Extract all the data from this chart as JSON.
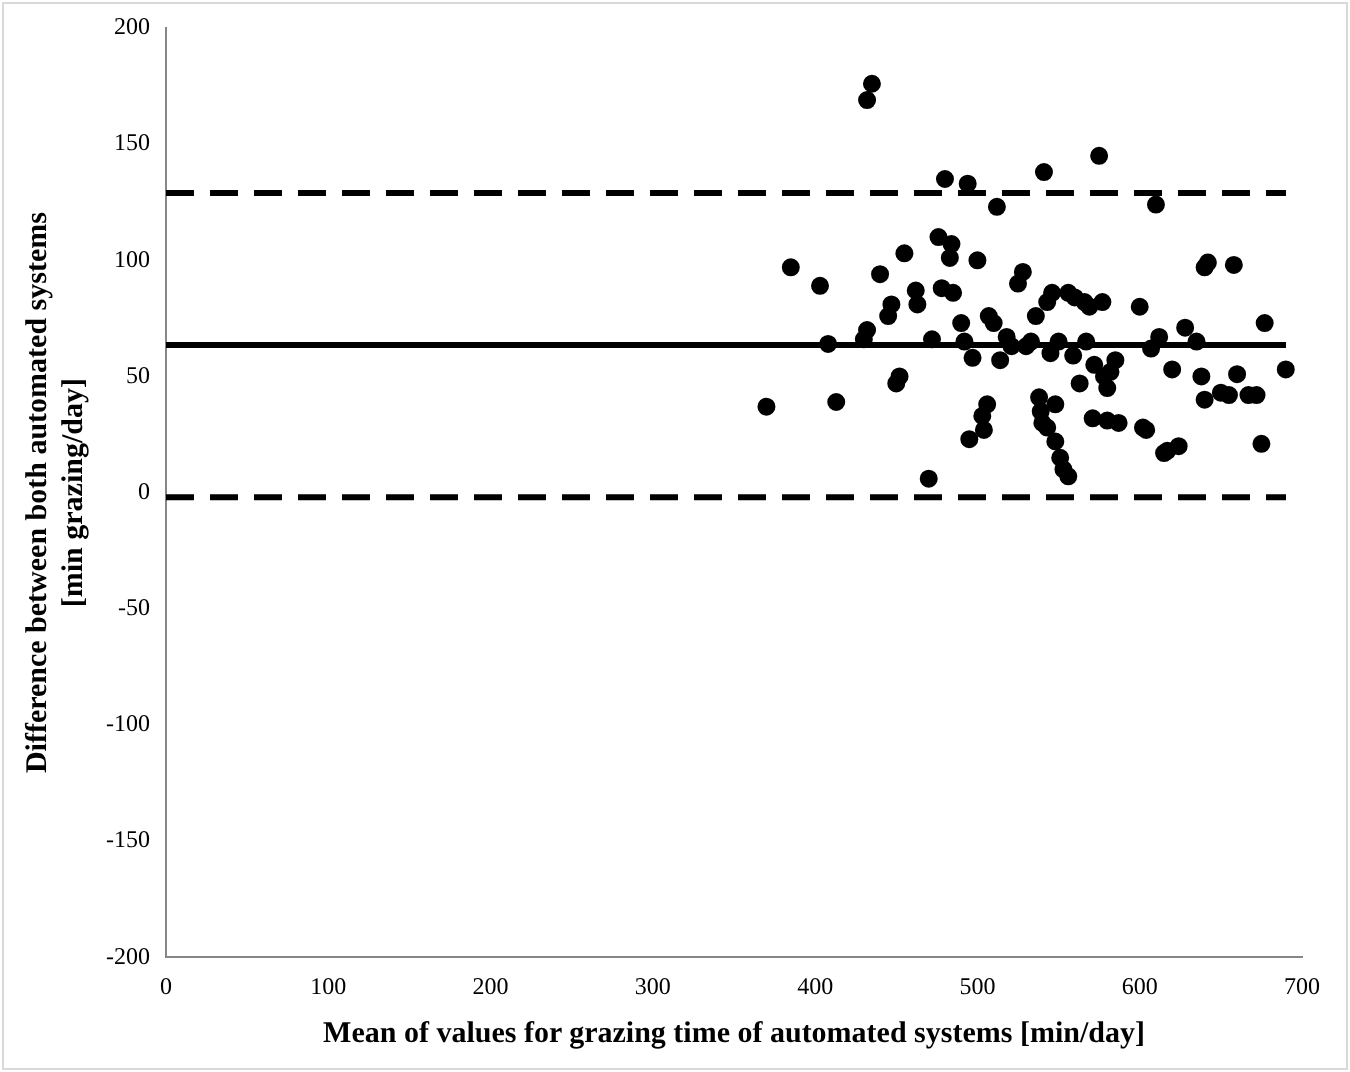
{
  "chart_data": {
    "type": "scatter",
    "xlabel": "Mean of values for grazing time of automated systems [min/day]",
    "ylabel": "Difference between both automated systems\n[min grazing/day]",
    "xlim": [
      0,
      700
    ],
    "xticks": [
      0,
      100,
      200,
      300,
      400,
      500,
      600,
      700
    ],
    "ylim": [
      -200,
      200
    ],
    "yticks": [
      -200,
      -150,
      -100,
      -50,
      0,
      50,
      100,
      150,
      200
    ],
    "grid": false,
    "legend": false,
    "marker": "circle",
    "series": [
      {
        "color": "#000000",
        "x": [
          370,
          385,
          403,
          408,
          413,
          432,
          435,
          430,
          432,
          440,
          445,
          447,
          450,
          452,
          455,
          462,
          463,
          470,
          472,
          476,
          478,
          480,
          483,
          484,
          485,
          490,
          492,
          494,
          495,
          497,
          500,
          503,
          504,
          506,
          507,
          510,
          512,
          514,
          518,
          521,
          525,
          528,
          530,
          533,
          536,
          538,
          539,
          540,
          541,
          543,
          543,
          545,
          546,
          548,
          548,
          550,
          551,
          553,
          556,
          556,
          559,
          560,
          563,
          566,
          567,
          569,
          571,
          572,
          575,
          577,
          578,
          580,
          580,
          582,
          585,
          587,
          600,
          602,
          604,
          607,
          610,
          612,
          615,
          617,
          620,
          624,
          628,
          635,
          638,
          640,
          640,
          642,
          650,
          655,
          658,
          660,
          667,
          672,
          675,
          677,
          690
        ],
        "values": [
          37,
          97,
          89,
          64,
          39,
          169,
          176,
          66,
          70,
          94,
          76,
          81,
          47,
          50,
          103,
          87,
          81,
          6,
          66,
          110,
          88,
          135,
          101,
          107,
          86,
          73,
          65,
          133,
          23,
          58,
          100,
          33,
          27,
          38,
          76,
          73,
          123,
          57,
          67,
          63,
          90,
          95,
          63,
          65,
          76,
          41,
          35,
          30,
          138,
          82,
          28,
          60,
          86,
          38,
          22,
          65,
          15,
          10,
          7,
          86,
          59,
          84,
          47,
          82,
          65,
          80,
          32,
          55,
          145,
          82,
          50,
          45,
          31,
          52,
          57,
          30,
          80,
          28,
          27,
          62,
          124,
          67,
          17,
          18,
          53,
          20,
          71,
          65,
          50,
          97,
          40,
          99,
          43,
          42,
          98,
          51,
          42,
          42,
          21,
          73,
          53
        ]
      }
    ],
    "ref_lines": [
      {
        "axis": "y",
        "value": 63.5,
        "line_style": "solid"
      },
      {
        "axis": "y",
        "value": 129,
        "line_style": "dashed"
      },
      {
        "axis": "y",
        "value": -2,
        "line_style": "dashed"
      }
    ]
  }
}
